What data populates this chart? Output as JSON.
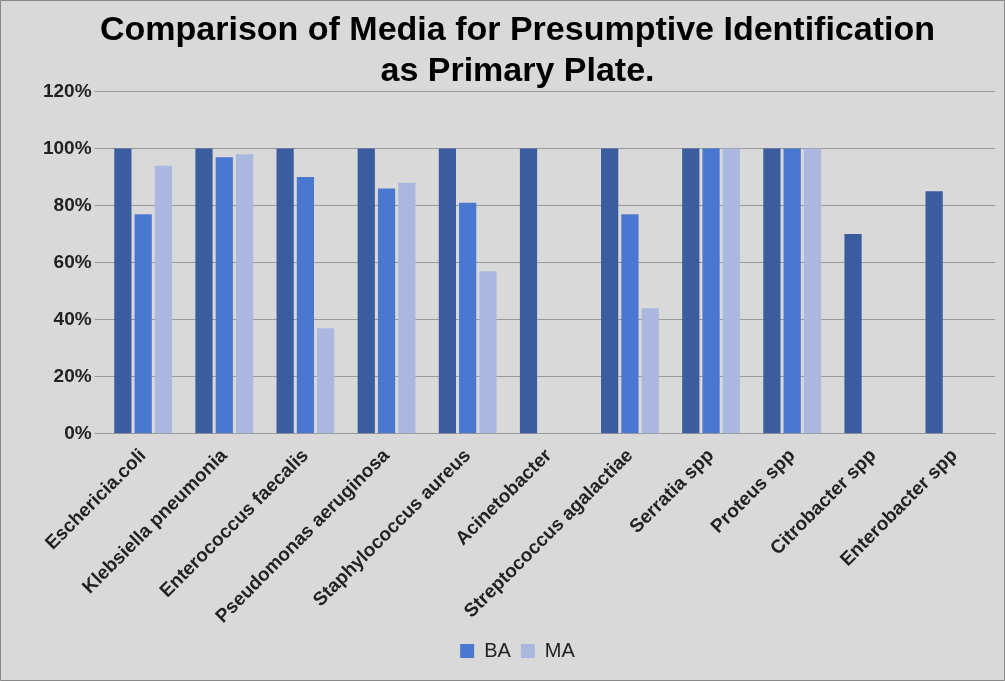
{
  "chart_data": {
    "type": "bar",
    "title": "Comparison of Media for Presumptive Identification as Primary Plate.",
    "categories": [
      "Eschericia.coli",
      "Klebsiella pneumonia",
      "Enterococcus faecalis",
      "Pseudomonas aeruginosa",
      "Staphylococcus aureus",
      "Acinetobacter",
      "Streptococcus agalactiae",
      "Serratia spp",
      "Proteus spp",
      "Citrobacter spp",
      "Enterobacter spp"
    ],
    "series": [
      {
        "color": "#3a5da0",
        "values": [
          100,
          100,
          100,
          100,
          100,
          100,
          100,
          100,
          100,
          70,
          85
        ]
      },
      {
        "name": "BA",
        "color": "#4a77cf",
        "values": [
          77,
          97,
          90,
          86,
          81,
          null,
          77,
          100,
          100,
          null,
          null
        ]
      },
      {
        "name": "MA",
        "color": "#aab8e0",
        "values": [
          94,
          98,
          37,
          88,
          57,
          null,
          44,
          100,
          100,
          null,
          null
        ]
      }
    ],
    "ylim": [
      0,
      120
    ],
    "yticks": [
      {
        "value": 0,
        "label": "0%"
      },
      {
        "value": 20,
        "label": "20%"
      },
      {
        "value": 40,
        "label": "40%"
      },
      {
        "value": 60,
        "label": "60%"
      },
      {
        "value": 80,
        "label": "80%"
      },
      {
        "value": 100,
        "label": "100%"
      },
      {
        "value": 120,
        "label": "120%"
      }
    ],
    "grid": "y",
    "legend": "bottom"
  }
}
